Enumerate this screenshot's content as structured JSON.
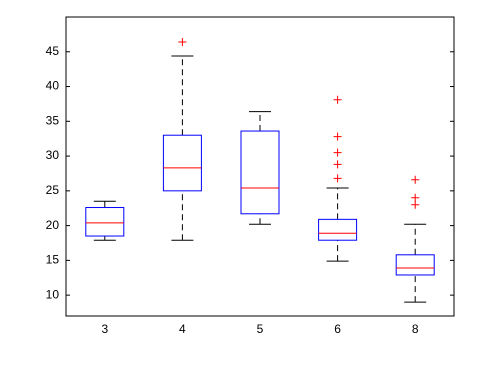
{
  "chart_data": {
    "type": "box",
    "categories": [
      "3",
      "4",
      "5",
      "6",
      "8"
    ],
    "boxes": [
      {
        "whisker_low": 17.9,
        "q1": 18.5,
        "median": 20.4,
        "q3": 22.6,
        "whisker_high": 23.5,
        "outliers": []
      },
      {
        "whisker_low": 17.9,
        "q1": 25.0,
        "median": 28.3,
        "q3": 33.0,
        "whisker_high": 44.4,
        "outliers": [
          46.4
        ]
      },
      {
        "whisker_low": 20.2,
        "q1": 21.7,
        "median": 25.4,
        "q3": 33.6,
        "whisker_high": 36.4,
        "outliers": []
      },
      {
        "whisker_low": 14.9,
        "q1": 17.9,
        "median": 18.9,
        "q3": 20.9,
        "whisker_high": 25.4,
        "outliers": [
          38.1,
          32.8,
          30.5,
          28.8,
          26.8
        ]
      },
      {
        "whisker_low": 9.0,
        "q1": 12.9,
        "median": 13.9,
        "q3": 15.8,
        "whisker_high": 20.2,
        "outliers": [
          26.6,
          24.0,
          23.0
        ]
      }
    ],
    "box_color": "#0000ff",
    "median_color": "#ff0000",
    "whisker_color": "#000000",
    "outlier_color": "#ff0000",
    "ylim": [
      7,
      50
    ],
    "yticks": [
      10,
      15,
      20,
      25,
      30,
      35,
      40,
      45
    ],
    "grid": false
  }
}
